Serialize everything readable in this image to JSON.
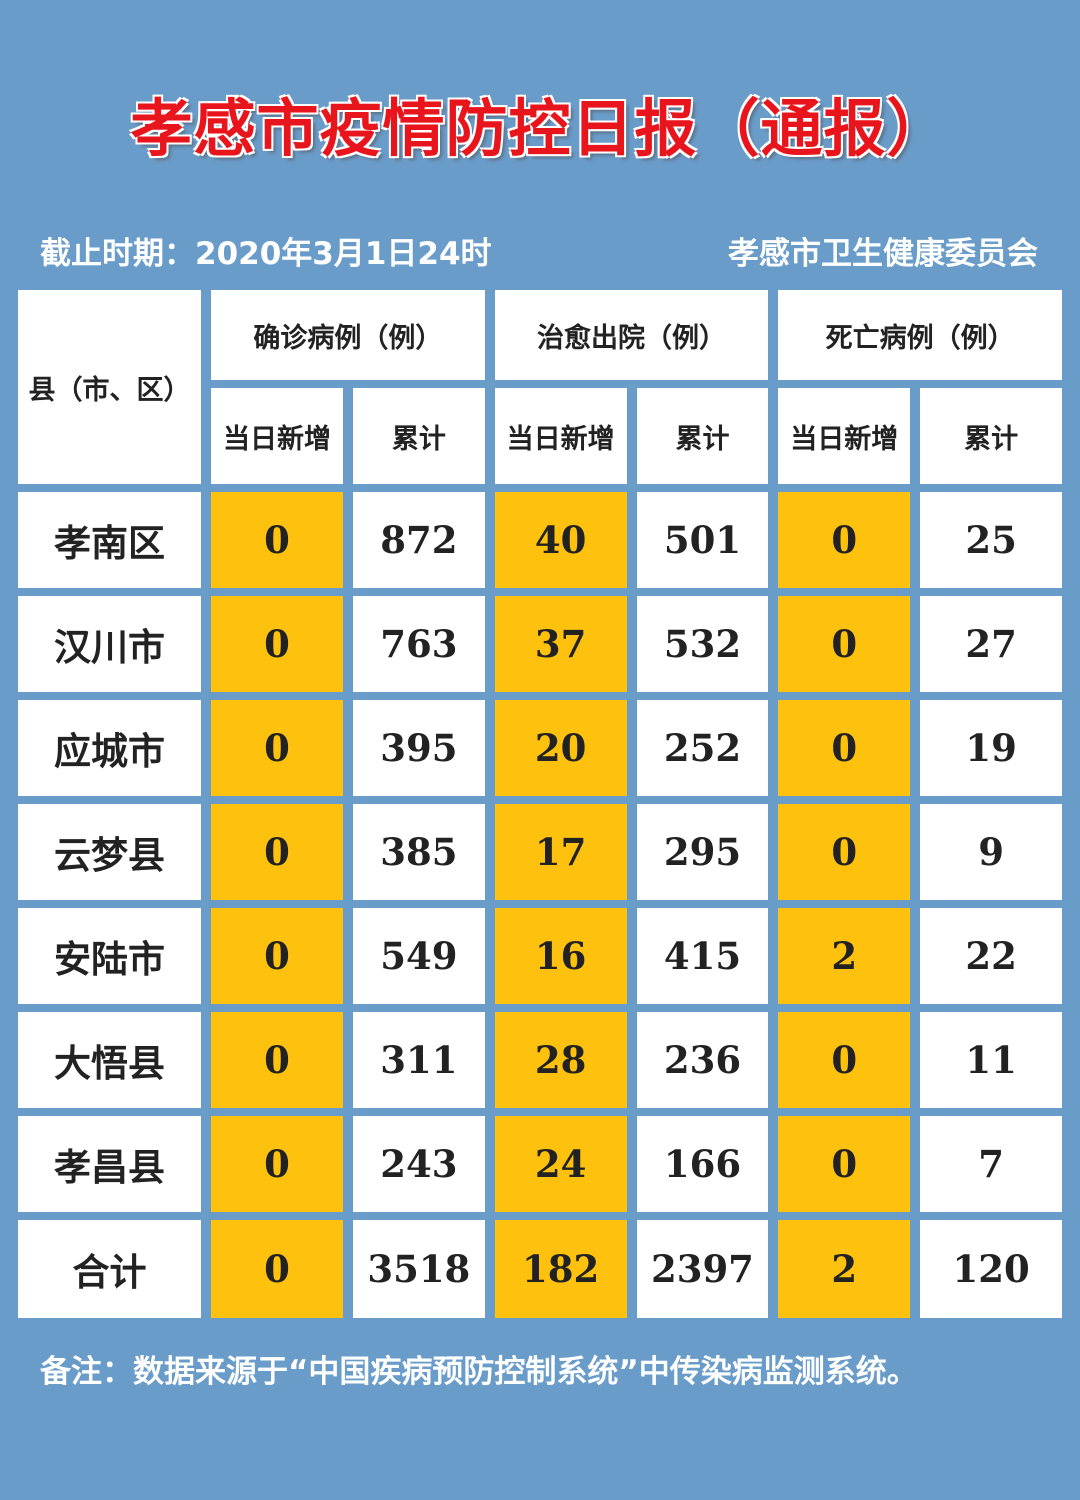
{
  "title": "孝感市疫情防控日报（通报）",
  "deadline": "截止时期：2020年3月1日24时",
  "publisher": "孝感市卫生健康委员会",
  "table": {
    "region_header": "县（市、区）",
    "groups": [
      "确诊病例（例）",
      "治愈出院（例）",
      "死亡病例（例）"
    ],
    "sub_headers": [
      "当日新增",
      "累计",
      "当日新增",
      "累计",
      "当日新增",
      "累计"
    ],
    "rows": [
      {
        "name": "孝南区",
        "values": [
          "0",
          "872",
          "40",
          "501",
          "0",
          "25"
        ]
      },
      {
        "name": "汉川市",
        "values": [
          "0",
          "763",
          "37",
          "532",
          "0",
          "27"
        ]
      },
      {
        "name": "应城市",
        "values": [
          "0",
          "395",
          "20",
          "252",
          "0",
          "19"
        ]
      },
      {
        "name": "云梦县",
        "values": [
          "0",
          "385",
          "17",
          "295",
          "0",
          "9"
        ]
      },
      {
        "name": "安陆市",
        "values": [
          "0",
          "549",
          "16",
          "415",
          "2",
          "22"
        ]
      },
      {
        "name": "大悟县",
        "values": [
          "0",
          "311",
          "28",
          "236",
          "0",
          "11"
        ]
      },
      {
        "name": "孝昌县",
        "values": [
          "0",
          "243",
          "24",
          "166",
          "0",
          "7"
        ]
      },
      {
        "name": "合计",
        "values": [
          "0",
          "3518",
          "182",
          "2397",
          "2",
          "120"
        ]
      }
    ]
  },
  "footnote": "备注：数据来源于“中国疾病预防控制系统”中传染病监测系统。",
  "colors": {
    "background": "#6a9cca",
    "highlight": "#fdc10e",
    "title": "#e8161c"
  }
}
